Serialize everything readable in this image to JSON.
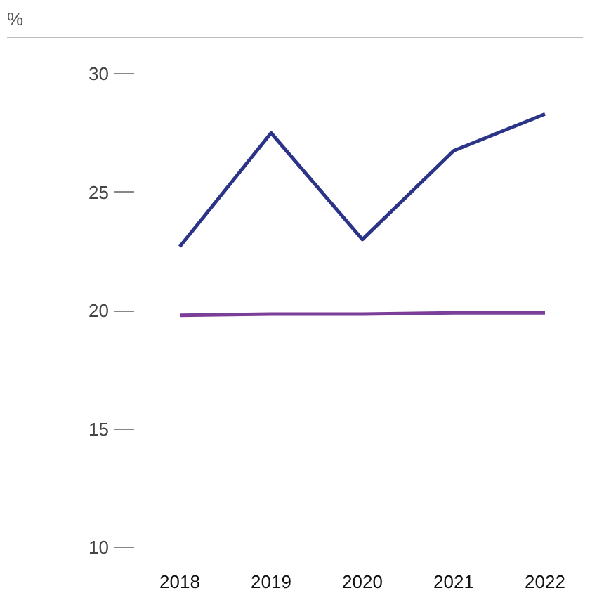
{
  "chart_data": {
    "type": "line",
    "ylabel": "%",
    "categories": [
      "2018",
      "2019",
      "2020",
      "2021",
      "2022"
    ],
    "series": [
      {
        "color": "#2b3486",
        "values": [
          22.7,
          27.5,
          23.0,
          26.75,
          28.3
        ]
      },
      {
        "color": "#7b3f98",
        "values": [
          19.8,
          19.85,
          19.85,
          19.9,
          19.9
        ]
      }
    ],
    "ylim": [
      10,
      30
    ],
    "yticks": [
      10,
      15,
      20,
      25,
      30
    ],
    "grid": false,
    "marker": "none",
    "line_style": "solid"
  }
}
